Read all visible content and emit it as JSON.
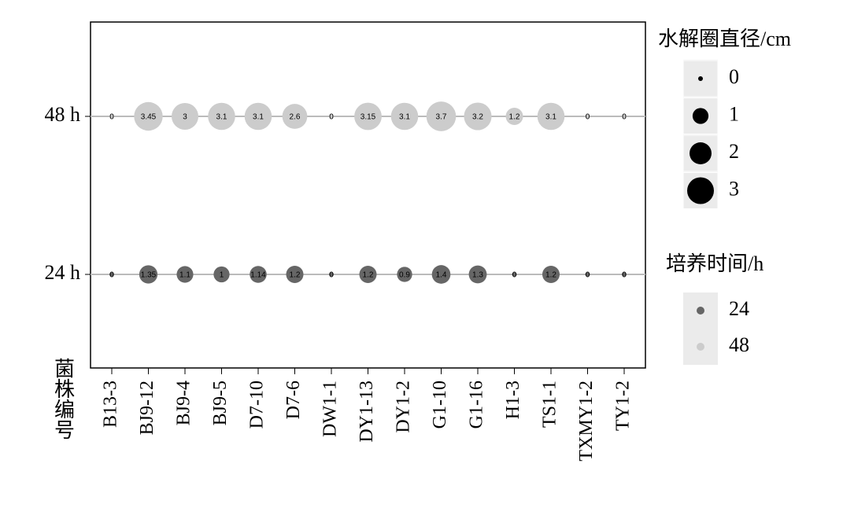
{
  "chart_data": {
    "type": "bubble",
    "xlabel": "菌株编号",
    "categories": [
      "B13-3",
      "BJ9-12",
      "BJ9-4",
      "BJ9-5",
      "D7-10",
      "D7-6",
      "DW1-1",
      "DY1-13",
      "DY1-2",
      "G1-10",
      "G1-16",
      "H1-3",
      "TS1-1",
      "TXMY1-2",
      "TY1-2"
    ],
    "y_categories": [
      "24 h",
      "48 h"
    ],
    "series": [
      {
        "name": "24",
        "color": "#666666",
        "values": [
          0,
          1.35,
          1.1,
          1,
          1.14,
          1.2,
          0,
          1.2,
          0.9,
          1.4,
          1.3,
          0,
          1.2,
          0,
          0
        ]
      },
      {
        "name": "48",
        "color": "#cccccc",
        "values": [
          0,
          3.45,
          3,
          3.1,
          3.1,
          2.6,
          0,
          3.15,
          3.1,
          3.7,
          3.2,
          1.2,
          3.1,
          0,
          0
        ]
      }
    ],
    "size_legend": {
      "title": "水解圈直径/cm",
      "values": [
        0,
        1,
        2,
        3
      ]
    },
    "color_legend_title": "培养时间/h"
  }
}
